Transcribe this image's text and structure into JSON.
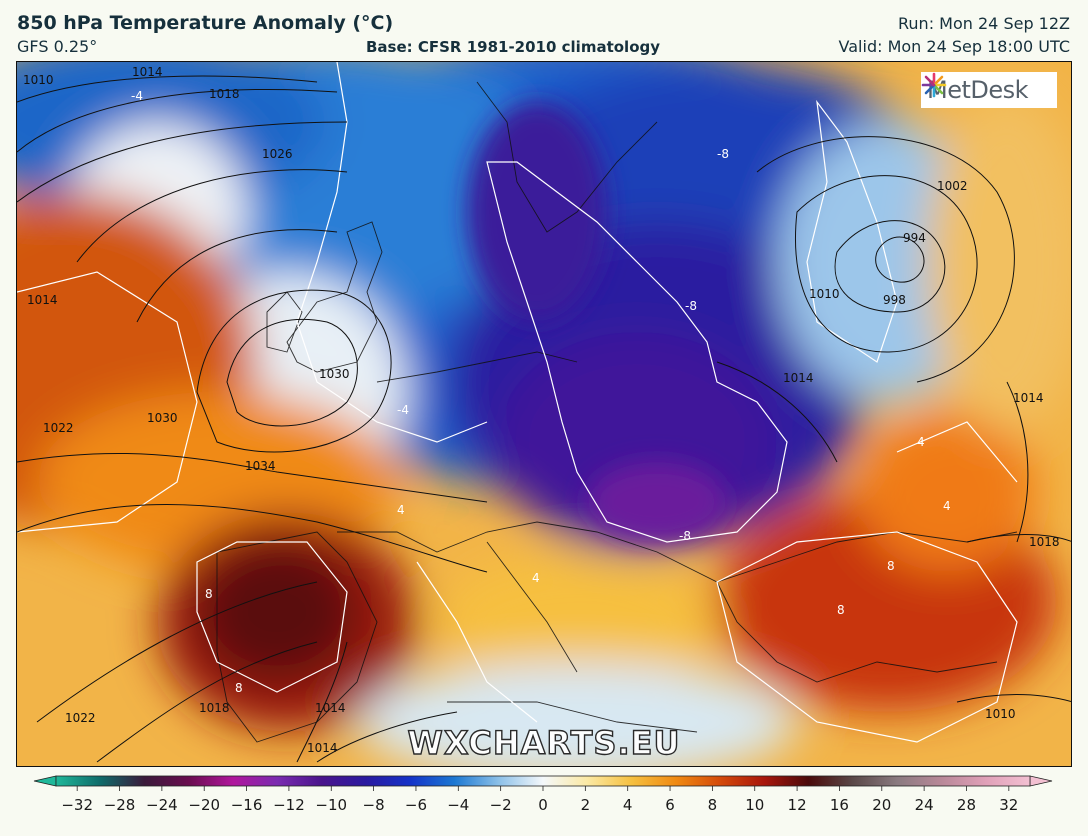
{
  "header": {
    "title": "850 hPa Temperature Anomaly (°C)",
    "model": "GFS 0.25°",
    "base": "Base: CFSR 1981-2010 climatology",
    "run": "Run: Mon 24 Sep 12Z",
    "valid": "Valid: Mon 24 Sep 18:00 UTC"
  },
  "logo": {
    "text": "MetDesk",
    "icon": "metdesk-burst-icon"
  },
  "watermark": "WXCHARTS.EU",
  "isobars": {
    "labels": [
      "1010",
      "1014",
      "1018",
      "1026",
      "1014",
      "1022",
      "1030",
      "1034",
      "1030",
      "1022",
      "1018",
      "1014",
      "1014",
      "1002",
      "994",
      "998",
      "1010",
      "1014",
      "1014",
      "1018",
      "1010"
    ]
  },
  "anomaly_labels": [
    "-4",
    "-8",
    "-8",
    "4",
    "4",
    "4",
    "8",
    "8",
    "8",
    "8",
    "4",
    "-8",
    "-4"
  ],
  "colorbar": {
    "ticks": [
      -32,
      -28,
      -24,
      -20,
      -16,
      -12,
      -10,
      -8,
      -6,
      -4,
      -2,
      0,
      2,
      4,
      6,
      8,
      10,
      12,
      16,
      20,
      24,
      28,
      32
    ],
    "colors": [
      "#1fb89a",
      "#0f6b6a",
      "#3a1a3a",
      "#6a0d4f",
      "#b0169c",
      "#7a2bb0",
      "#4a148c",
      "#2a1aa0",
      "#1432c8",
      "#1c78d2",
      "#8cc0e8",
      "#f4f8fb",
      "#fbe9a4",
      "#f5c040",
      "#f08a12",
      "#d44a0a",
      "#a8160c",
      "#4a0a0a",
      "#5a4848",
      "#8a7a80",
      "#b88898",
      "#e0a0b8",
      "#f3c0d2"
    ]
  },
  "colors": {
    "background": "#f8faf2",
    "deep_blue": "#2a1aa0",
    "purple": "#4a148c",
    "orange": "#f08a12",
    "dark_red": "#8a0f0a"
  }
}
